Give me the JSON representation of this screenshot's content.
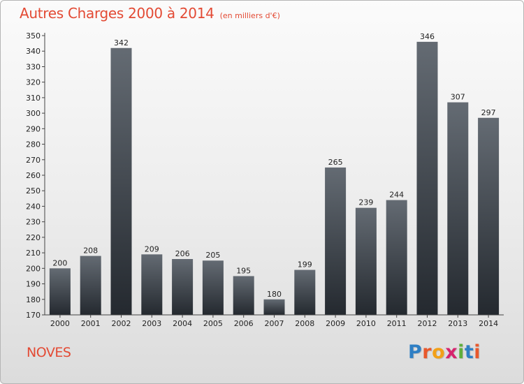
{
  "chart_data": {
    "type": "bar",
    "title": "Autres Charges 2000 à 2014",
    "unit": "(en milliers d'€)",
    "categories": [
      "2000",
      "2001",
      "2002",
      "2003",
      "2004",
      "2005",
      "2006",
      "2007",
      "2008",
      "2009",
      "2010",
      "2011",
      "2012",
      "2013",
      "2014"
    ],
    "values": [
      200,
      208,
      342,
      209,
      206,
      205,
      195,
      180,
      199,
      265,
      239,
      244,
      346,
      307,
      297
    ],
    "ylim": [
      170,
      350
    ],
    "yticks": [
      170,
      180,
      190,
      200,
      210,
      220,
      230,
      240,
      250,
      260,
      270,
      280,
      290,
      300,
      310,
      320,
      330,
      340,
      350
    ],
    "grid": false,
    "bar_colors": [
      "#646b73",
      "#24292f"
    ]
  },
  "footer": {
    "commune": "NOVES",
    "brand_letters": [
      {
        "ch": "P",
        "color": "#2f7fc4"
      },
      {
        "ch": "r",
        "color": "#e8582c"
      },
      {
        "ch": "o",
        "color": "#f2a018"
      },
      {
        "ch": "x",
        "color": "#d6246d"
      },
      {
        "ch": "i",
        "color": "#5fae3c"
      },
      {
        "ch": "t",
        "color": "#2f7fc4"
      },
      {
        "ch": "i",
        "color": "#e8582c"
      }
    ]
  }
}
